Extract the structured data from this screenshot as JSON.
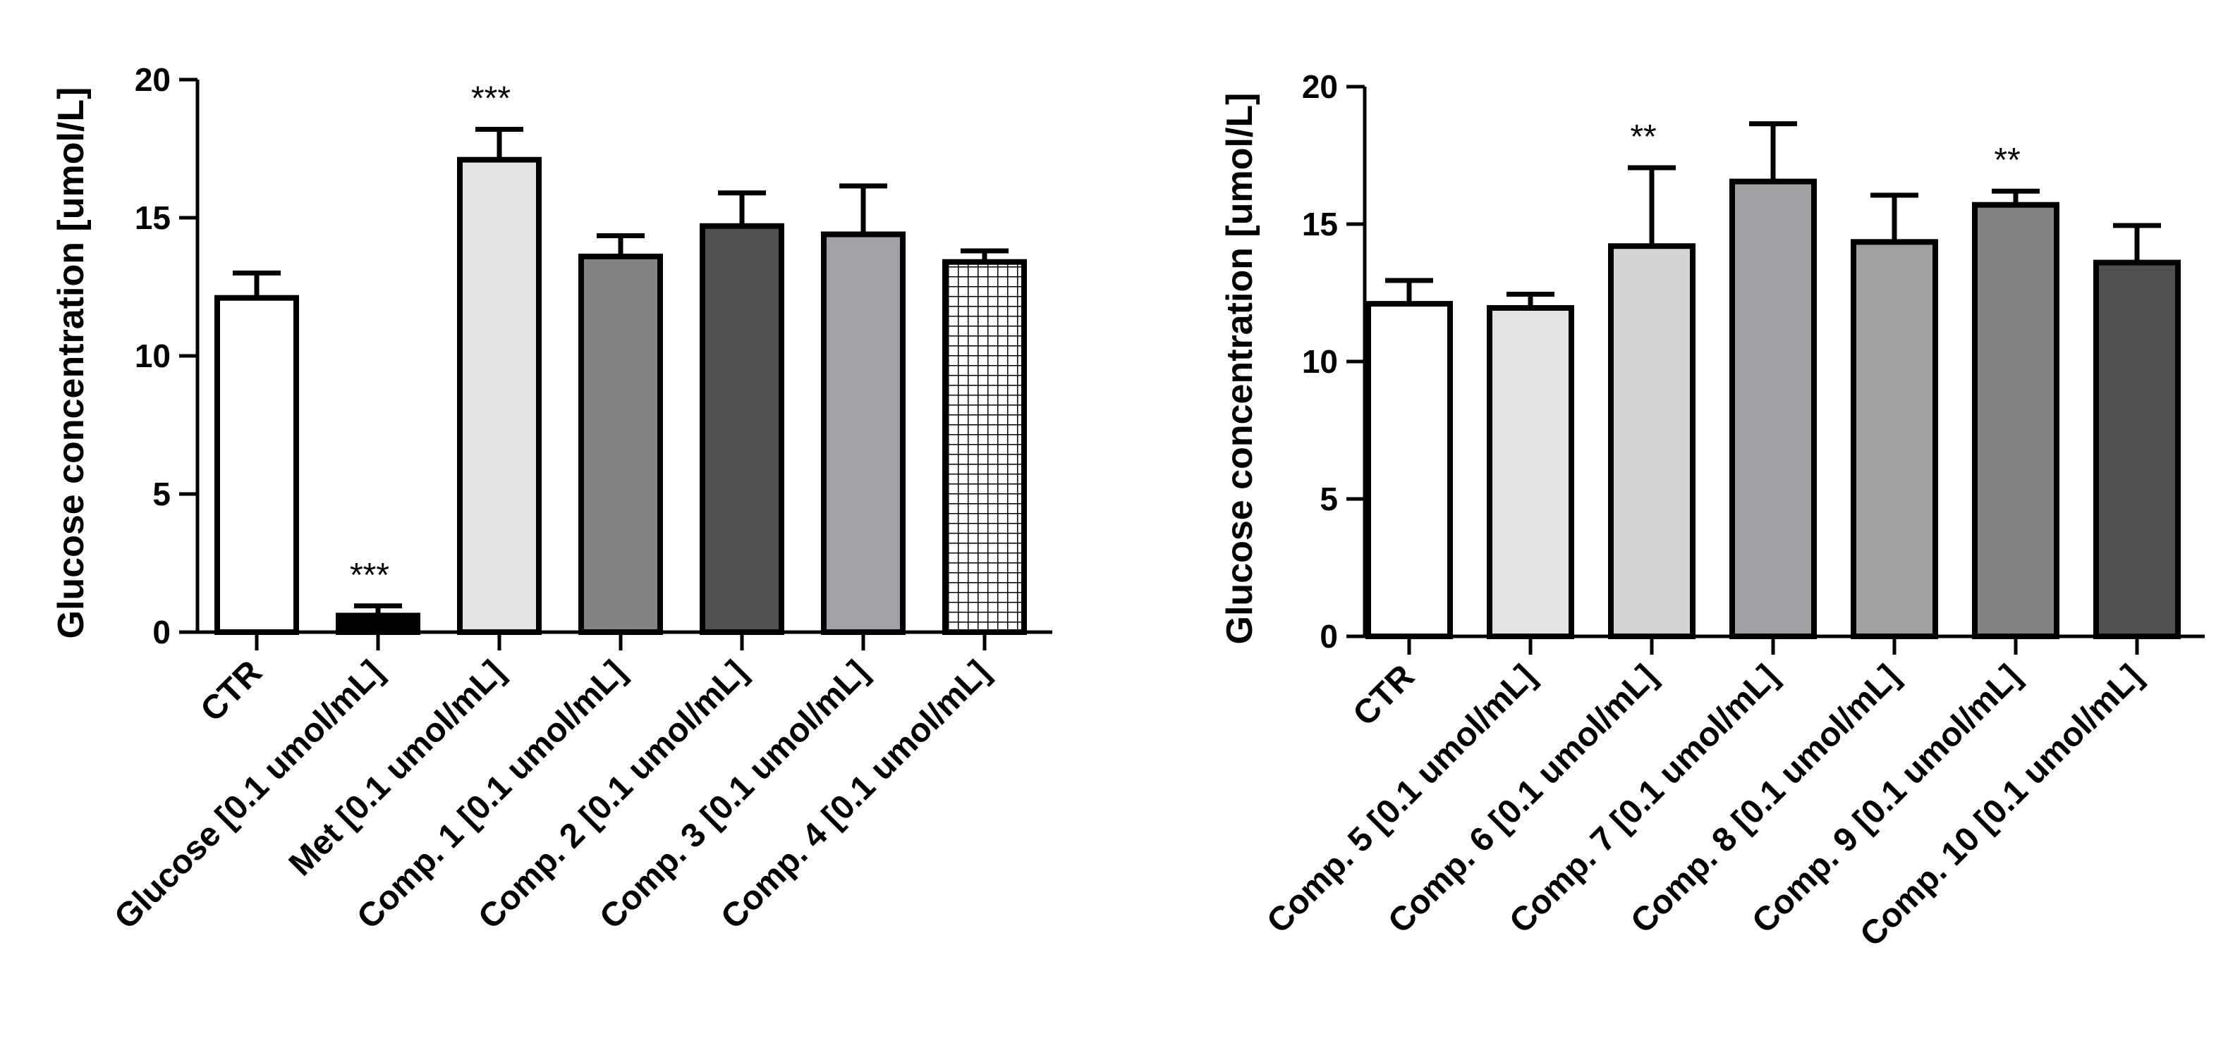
{
  "chart_data": [
    {
      "type": "bar",
      "title": "",
      "xlabel": "",
      "ylabel": "Glucose concentration [umol/L]",
      "ylim": [
        0,
        20
      ],
      "yticks": [
        0,
        5,
        10,
        15,
        20
      ],
      "grid": false,
      "categories": [
        "CTR",
        "Glucose [0.1 umol/mL]",
        "Met [0.1 umol/mL]",
        "Comp. 1 [0.1 umol/mL]",
        "Comp. 2 [0.1 umol/mL]",
        "Comp. 3 [0.1 umol/mL]",
        "Comp. 4 [0.1 umol/mL]"
      ],
      "values": [
        12.1,
        0.6,
        17.1,
        13.6,
        14.7,
        14.4,
        13.4
      ],
      "errors": [
        0.9,
        0.35,
        1.1,
        0.75,
        1.2,
        1.75,
        0.4
      ],
      "significance": [
        "",
        "***",
        "***",
        "",
        "",
        "",
        ""
      ],
      "fills": [
        "#ffffff",
        "#000000",
        "#e3e3e3",
        "#838383",
        "#505050",
        "#a3a3a7",
        "hatch"
      ]
    },
    {
      "type": "bar",
      "title": "",
      "xlabel": "",
      "ylabel": "Glucose concentration [umol/L]",
      "ylim": [
        0,
        20
      ],
      "yticks": [
        0,
        5,
        10,
        15,
        20
      ],
      "grid": false,
      "categories": [
        "CTR",
        "Comp. 5 [0.1 umol/mL]",
        "Comp. 6 [0.1 umol/mL]",
        "Comp. 7 [0.1 umol/mL]",
        "Comp. 8 [0.1 umol/mL]",
        "Comp. 9 [0.1 umol/mL]",
        "Comp. 10 [0.1 umol/mL]"
      ],
      "values": [
        12.1,
        11.95,
        14.2,
        16.55,
        14.35,
        15.7,
        13.6
      ],
      "errors": [
        0.85,
        0.5,
        2.85,
        2.1,
        1.7,
        0.5,
        1.35
      ],
      "significance": [
        "",
        "",
        "**",
        "",
        "",
        "**",
        ""
      ],
      "fills": [
        "#ffffff",
        "#e3e3e3",
        "#d3d3d3",
        "#a1a1a5",
        "#a1a1a1",
        "#838383",
        "#505050"
      ]
    }
  ]
}
